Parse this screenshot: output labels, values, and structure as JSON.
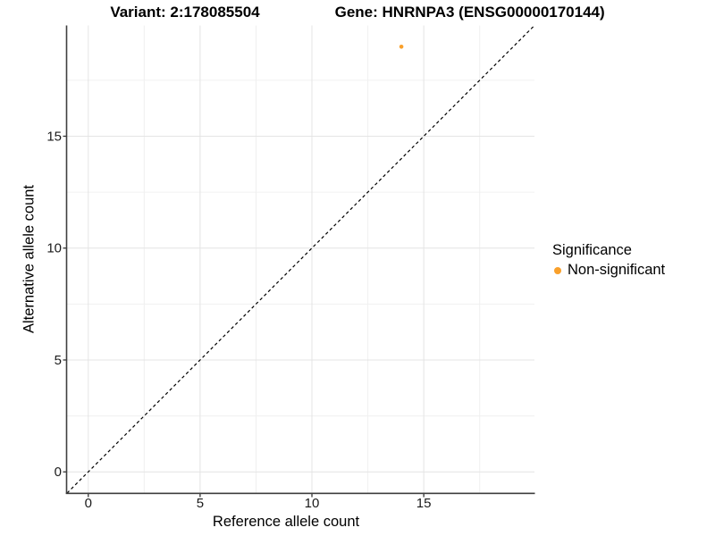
{
  "title": {
    "variant": "Variant: 2:178085504",
    "gene": "Gene: HNRNPA3 (ENSG00000170144)"
  },
  "chart_data": {
    "type": "scatter",
    "xlabel": "Reference allele count",
    "ylabel": "Alternative allele count",
    "xlim": [
      -0.95,
      19.95
    ],
    "ylim": [
      -0.95,
      19.95
    ],
    "x_major_ticks": [
      0,
      5,
      10,
      15
    ],
    "y_major_ticks": [
      0,
      5,
      10,
      15
    ],
    "x_minor_ticks": [
      2.5,
      7.5,
      12.5,
      17.5
    ],
    "y_minor_ticks": [
      2.5,
      7.5,
      12.5,
      17.5
    ],
    "grid": true,
    "points": [
      {
        "x": 14,
        "y": 19,
        "significance": "Non-significant"
      }
    ],
    "reference_line": {
      "slope": 1,
      "intercept": 0,
      "style": "dashed",
      "color": "#000000"
    },
    "legend": {
      "title": "Significance",
      "position": "right",
      "items": [
        {
          "label": "Non-significant",
          "color": "#F9A02B"
        }
      ]
    },
    "colors": {
      "point": "#F9A02B",
      "grid_major": "#E4E4E4",
      "grid_minor": "#F0F0F0",
      "axis_line": "#3F3F3F",
      "tick_mark": "#333333",
      "tick_label": "#1A1A1A",
      "background": "#FFFFFF"
    }
  }
}
